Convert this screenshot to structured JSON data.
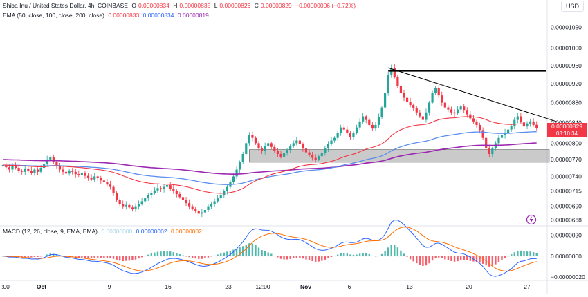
{
  "header": {
    "symbol": "Shiba Inu / United States Dollar, 4h, COINBASE",
    "o_label": "O",
    "o_value": "0.00000834",
    "h_label": "H",
    "h_value": "0.00000835",
    "l_label": "L",
    "l_value": "0.00000826",
    "c_label": "C",
    "c_value": "0.00000829",
    "change": "−0.00000006 (−0.72%)",
    "ema_label": "EMA (50, close, 100, close, 200, close)",
    "ema50_value": "0.00000833",
    "ema100_value": "0.00000834",
    "ema200_value": "0.00000819",
    "macd_label": "MACD (12, 26, close, 9, EMA, EMA)",
    "macd_hist_value": "0.00000000",
    "macd_value": "0.00000002",
    "signal_value": "0.00000002",
    "currency": "USD"
  },
  "price_tag": {
    "value": "0.00000829",
    "countdown": "03:10:34"
  },
  "colors": {
    "up": "#26a69a",
    "down": "#f23645",
    "ema50": "#f23645",
    "ema100": "#5b8def",
    "ema200": "#9c27b0",
    "macd": "#2962ff",
    "signal": "#ff6d00",
    "zone": "#9e9e9e"
  },
  "chart_data": {
    "type": "candlestick",
    "price_axis": {
      "ticks": [
        "0.00001050",
        "0.00001000",
        "0.00000960",
        "0.00000920",
        "0.00000880",
        "0.00000840",
        "0.00000800",
        "0.00000770",
        "0.00000740",
        "0.00000715",
        "0.00000690",
        "0.00000668"
      ],
      "tick_values": [
        1.05e-05,
        1e-05,
        9.6e-06,
        9.2e-06,
        8.8e-06,
        8.4e-06,
        8e-06,
        7.7e-06,
        7.4e-06,
        7.15e-06,
        6.9e-06,
        6.68e-06
      ],
      "range": [
        6.6e-06,
        1.07e-05
      ],
      "scale": "log"
    },
    "time_axis": {
      "labels": [
        ":00",
        "Oct",
        "9",
        "16",
        "23",
        "12:00",
        "Nov",
        "6",
        "13",
        "20",
        "27"
      ],
      "bars_per_day": 6
    },
    "macd_axis": {
      "ticks": [
        "0.00000020",
        "0.00000000",
        "−0.00000020"
      ],
      "tick_values": [
        2e-07,
        0,
        -2e-07
      ],
      "range": [
        -2.2e-07,
        2.7e-07
      ]
    },
    "candles": [
      7.6e-06,
      7.56e-06,
      7.52e-06,
      7.58e-06,
      7.55e-06,
      7.5e-06,
      7.48e-06,
      7.54e-06,
      7.5e-06,
      7.46e-06,
      7.52e-06,
      7.48e-06,
      7.55e-06,
      7.62e-06,
      7.7e-06,
      7.75e-06,
      7.65e-06,
      7.58e-06,
      7.52e-06,
      7.48e-06,
      7.45e-06,
      7.5e-06,
      7.48e-06,
      7.44e-06,
      7.42e-06,
      7.46e-06,
      7.41e-06,
      7.38e-06,
      7.35e-06,
      7.4e-06,
      7.37e-06,
      7.33e-06,
      7.3e-06,
      7.26e-06,
      7.22e-06,
      7.12e-06,
      7e-06,
      6.94e-06,
      6.9e-06,
      6.92e-06,
      6.88e-06,
      6.85e-06,
      6.9e-06,
      6.94e-06,
      6.98e-06,
      7.03e-06,
      7.08e-06,
      7.12e-06,
      7.16e-06,
      7.2e-06,
      7.18e-06,
      7.22e-06,
      7.25e-06,
      7.19e-06,
      7.15e-06,
      7.1e-06,
      7.05e-06,
      7e-06,
      6.95e-06,
      6.9e-06,
      6.86e-06,
      6.82e-06,
      6.78e-06,
      6.8e-06,
      6.84e-06,
      6.9e-06,
      6.94e-06,
      6.98e-06,
      7.03e-06,
      7.08e-06,
      7.15e-06,
      7.22e-06,
      7.3e-06,
      7.4e-06,
      7.52e-06,
      7.65e-06,
      7.8e-06,
      8e-06,
      8.15e-06,
      8.1e-06,
      8e-06,
      7.9e-06,
      7.85e-06,
      7.95e-06,
      8e-06,
      7.93e-06,
      7.86e-06,
      7.8e-06,
      7.75e-06,
      7.82e-06,
      7.88e-06,
      7.94e-06,
      8e-06,
      8.05e-06,
      7.98e-06,
      7.9e-06,
      7.83e-06,
      7.78e-06,
      7.73e-06,
      7.7e-06,
      7.76e-06,
      7.82e-06,
      7.9e-06,
      7.98e-06,
      8.05e-06,
      8.1e-06,
      8.2e-06,
      8.3e-06,
      8.26e-06,
      8.2e-06,
      8.12e-06,
      8.2e-06,
      8.3e-06,
      8.42e-06,
      8.52e-06,
      8.45e-06,
      8.35e-06,
      8.28e-06,
      8.35e-06,
      8.5e-06,
      8.7e-06,
      9e-06,
      9.4e-06,
      9.55e-06,
      9.35e-06,
      9.15e-06,
      9e-06,
      8.9e-06,
      8.82e-06,
      8.75e-06,
      8.68e-06,
      8.6e-06,
      8.52e-06,
      8.45e-06,
      8.6e-06,
      8.8e-06,
      9e-06,
      9.1e-06,
      8.95e-06,
      8.8e-06,
      8.7e-06,
      8.66e-06,
      8.6e-06,
      8.58e-06,
      8.66e-06,
      8.72e-06,
      8.65e-06,
      8.56e-06,
      8.48e-06,
      8.42e-06,
      8.35e-06,
      8.25e-06,
      8.1e-06,
      7.9e-06,
      7.8e-06,
      7.9e-06,
      8e-06,
      8.1e-06,
      8.15e-06,
      8.2e-06,
      8.26e-06,
      8.32e-06,
      8.45e-06,
      8.52e-06,
      8.4e-06,
      8.32e-06,
      8.38e-06,
      8.42e-06,
      8.35e-06,
      8.29e-06
    ],
    "ema_periods": [
      50,
      100,
      200
    ],
    "ema200_start": 7.7e-06,
    "triangle_resistance": {
      "from_bar": 122,
      "to_bar": 173,
      "from_price": 9.55e-06,
      "to_price": 8.42e-06
    },
    "horizontal_level": {
      "price": 9.48e-06
    },
    "support_zone": {
      "from_bar": 78,
      "to_bar": 173,
      "top": 7.88e-06,
      "bottom": 7.65e-06
    },
    "current_price": 8.29e-06
  }
}
